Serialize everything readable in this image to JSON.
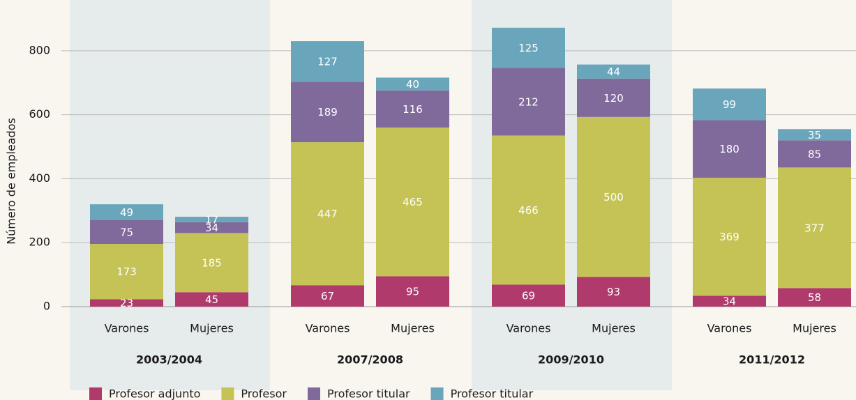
{
  "chart_data": {
    "type": "stacked_bar",
    "y_label": "Número de empleados",
    "groups": [
      "2003/2004",
      "2007/2008",
      "2009/2010",
      "2011/2012"
    ],
    "categories": [
      "Varones",
      "Mujeres",
      "Varones",
      "Mujeres",
      "Varones",
      "Mujeres",
      "Varones",
      "Mujeres"
    ],
    "series": [
      {
        "name": "Profesor adjunto",
        "color": "#b03a6b",
        "values": [
          23,
          45,
          67,
          95,
          69,
          93,
          34,
          58
        ]
      },
      {
        "name": "Profesor",
        "color": "#c5c356",
        "values": [
          173,
          185,
          447,
          465,
          466,
          500,
          369,
          377
        ]
      },
      {
        "name": "Profesor titular",
        "color": "#7f6a9b",
        "values": [
          75,
          34,
          189,
          116,
          212,
          120,
          180,
          85
        ]
      },
      {
        "name": "Profesor titular",
        "color": "#6aa6bb",
        "values": [
          49,
          17,
          127,
          40,
          125,
          44,
          99,
          35
        ]
      }
    ],
    "ylim": [
      0,
      950
    ],
    "yticks": [
      0,
      200,
      400,
      600,
      800
    ],
    "grid": true,
    "legend": "bottom"
  }
}
